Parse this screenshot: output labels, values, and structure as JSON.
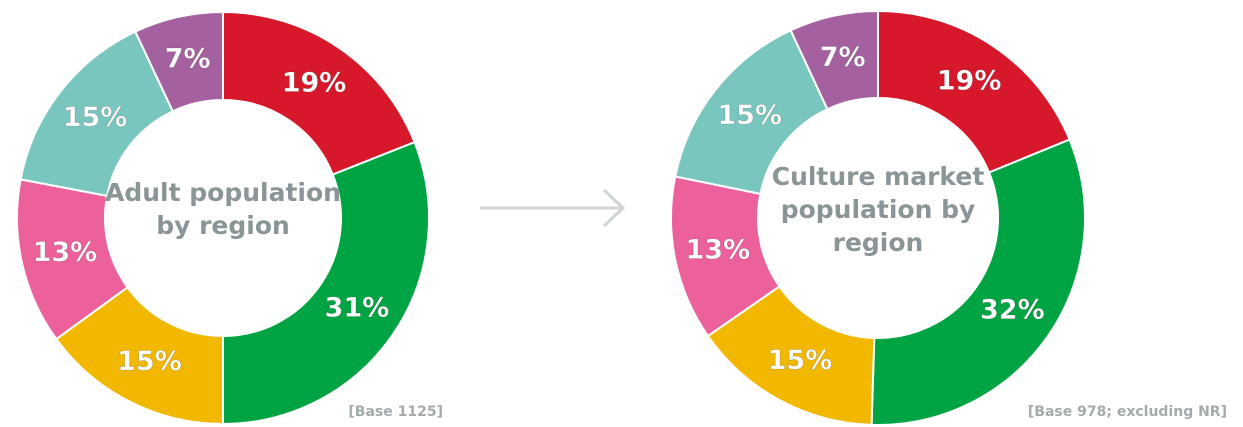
{
  "chart_data": [
    {
      "type": "donut",
      "title": "Adult population by region",
      "values": [
        19,
        31,
        15,
        13,
        15,
        7
      ],
      "value_labels": [
        "19%",
        "31%",
        "15%",
        "13%",
        "15%",
        "7%"
      ],
      "colors": [
        "#d7182a",
        "#00a443",
        "#f2b800",
        "#ec619b",
        "#78c6bd",
        "#a5619f"
      ],
      "note": "[Base 1125]"
    },
    {
      "type": "donut",
      "title": "Culture market population by region",
      "values": [
        19,
        32,
        15,
        13,
        15,
        7
      ],
      "value_labels": [
        "19%",
        "32%",
        "15%",
        "13%",
        "15%",
        "7%"
      ],
      "colors": [
        "#d7182a",
        "#00a443",
        "#f2b800",
        "#ec619b",
        "#78c6bd",
        "#a5619f"
      ],
      "note": "[Base 978; excluding NR]"
    }
  ]
}
